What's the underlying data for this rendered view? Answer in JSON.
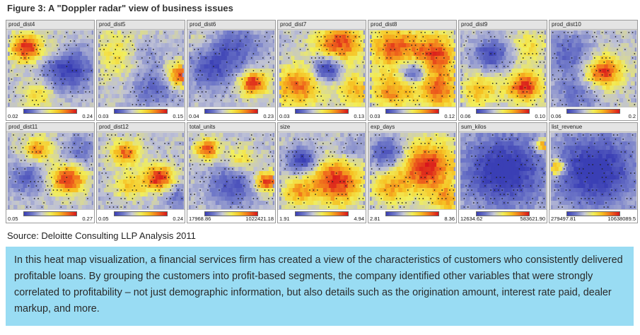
{
  "figure": {
    "title": "Figure 3: A \"Doppler radar\" view of business issues",
    "source": "Source: Deloitte Consulting LLP Analysis 2011",
    "caption": "In this heat map visualization, a financial services firm has created a view of the characteristics of customers who consistently delivered profitable loans. By grouping the customers into profit-based segments, the company identified other variables that were strongly correlated to profitability – not just demographic information, but also details such as the origination amount, interest rate paid, dealer markup, and more."
  },
  "chart_data": {
    "type": "heatmap",
    "colors": {
      "low": "#3a3fb5",
      "mid": "#f2ef5a",
      "high": "#d8161c"
    },
    "panels": [
      {
        "label": "prod_dist4",
        "min": "0.02",
        "max": "0.24",
        "hotspots": [
          [
            0.2,
            0.22,
            0.14,
            1.0
          ],
          [
            0.7,
            0.5,
            0.2,
            -0.8
          ],
          [
            0.35,
            0.85,
            0.12,
            0.5
          ],
          [
            0.6,
            0.25,
            0.1,
            0.3
          ]
        ]
      },
      {
        "label": "prod_dist5",
        "min": "0.03",
        "max": "0.15",
        "hotspots": [
          [
            0.95,
            0.6,
            0.12,
            1.0
          ],
          [
            0.25,
            0.3,
            0.25,
            0.35
          ],
          [
            0.65,
            0.75,
            0.2,
            -0.5
          ],
          [
            0.55,
            0.3,
            0.15,
            -0.3
          ]
        ]
      },
      {
        "label": "prod_dist6",
        "min": "0.04",
        "max": "0.23",
        "hotspots": [
          [
            0.75,
            0.7,
            0.12,
            1.0
          ],
          [
            0.25,
            0.5,
            0.2,
            -0.6
          ],
          [
            0.55,
            0.2,
            0.2,
            -0.5
          ],
          [
            0.1,
            0.15,
            0.1,
            0.2
          ]
        ]
      },
      {
        "label": "prod_dist7",
        "min": "0.03",
        "max": "0.13",
        "hotspots": [
          [
            0.7,
            0.15,
            0.2,
            0.9
          ],
          [
            0.2,
            0.75,
            0.2,
            0.8
          ],
          [
            0.55,
            0.5,
            0.12,
            -0.9
          ],
          [
            0.9,
            0.8,
            0.15,
            0.6
          ]
        ]
      },
      {
        "label": "prod_dist8",
        "min": "0.03",
        "max": "0.12",
        "hotspots": [
          [
            0.25,
            0.2,
            0.2,
            0.8
          ],
          [
            0.75,
            0.3,
            0.2,
            0.9
          ],
          [
            0.5,
            0.55,
            0.12,
            -0.8
          ],
          [
            0.25,
            0.8,
            0.18,
            0.7
          ],
          [
            0.8,
            0.8,
            0.18,
            0.8
          ]
        ]
      },
      {
        "label": "prod_dist9",
        "min": "0.06",
        "max": "0.10",
        "hotspots": [
          [
            0.75,
            0.75,
            0.15,
            1.0
          ],
          [
            0.35,
            0.3,
            0.15,
            -0.7
          ],
          [
            0.2,
            0.8,
            0.15,
            0.6
          ],
          [
            0.8,
            0.2,
            0.15,
            0.4
          ]
        ]
      },
      {
        "label": "prod_dist10",
        "min": "0.06",
        "max": "0.2",
        "hotspots": [
          [
            0.6,
            0.55,
            0.16,
            1.0
          ],
          [
            0.2,
            0.3,
            0.2,
            -0.5
          ],
          [
            0.3,
            0.85,
            0.2,
            -0.4
          ]
        ]
      },
      {
        "label": "prod_dist11",
        "min": "0.05",
        "max": "0.27",
        "hotspots": [
          [
            0.7,
            0.62,
            0.14,
            1.0
          ],
          [
            0.35,
            0.2,
            0.12,
            0.7
          ],
          [
            0.2,
            0.6,
            0.15,
            -0.5
          ],
          [
            0.85,
            0.2,
            0.15,
            -0.4
          ]
        ]
      },
      {
        "label": "prod_dist12",
        "min": "0.05",
        "max": "0.24",
        "hotspots": [
          [
            0.7,
            0.6,
            0.13,
            1.0
          ],
          [
            0.3,
            0.25,
            0.12,
            0.8
          ],
          [
            0.35,
            0.7,
            0.12,
            0.5
          ],
          [
            0.9,
            0.85,
            0.12,
            -0.4
          ]
        ]
      },
      {
        "label": "total_units",
        "min": "17968.86",
        "max": "1022421.18",
        "hotspots": [
          [
            0.2,
            0.2,
            0.1,
            0.9
          ],
          [
            0.9,
            0.65,
            0.1,
            1.0
          ],
          [
            0.6,
            0.35,
            0.12,
            0.5
          ],
          [
            0.5,
            0.7,
            0.2,
            -0.6
          ]
        ]
      },
      {
        "label": "size",
        "min": "1.91",
        "max": "4.94",
        "hotspots": [
          [
            0.65,
            0.65,
            0.22,
            1.0
          ],
          [
            0.25,
            0.35,
            0.12,
            -0.8
          ],
          [
            0.2,
            0.8,
            0.12,
            0.6
          ],
          [
            0.85,
            0.2,
            0.12,
            -0.3
          ]
        ]
      },
      {
        "label": "exp_days",
        "min": "2.81",
        "max": "8.36",
        "hotspots": [
          [
            0.65,
            0.45,
            0.25,
            1.0
          ],
          [
            0.2,
            0.25,
            0.15,
            -0.7
          ],
          [
            0.2,
            0.75,
            0.15,
            0.5
          ],
          [
            0.9,
            0.9,
            0.12,
            0.6
          ]
        ]
      },
      {
        "label": "sum_kilos",
        "min": "12634.62",
        "max": "583621.90",
        "hotspots": [
          [
            0.5,
            0.5,
            0.35,
            -0.9
          ],
          [
            0.95,
            0.15,
            0.06,
            0.9
          ]
        ]
      },
      {
        "label": "list_revenue",
        "min": "279497.81",
        "max": "10638089.5",
        "hotspots": [
          [
            0.05,
            0.45,
            0.08,
            1.0
          ],
          [
            0.5,
            0.5,
            0.35,
            -0.9
          ]
        ]
      }
    ]
  }
}
